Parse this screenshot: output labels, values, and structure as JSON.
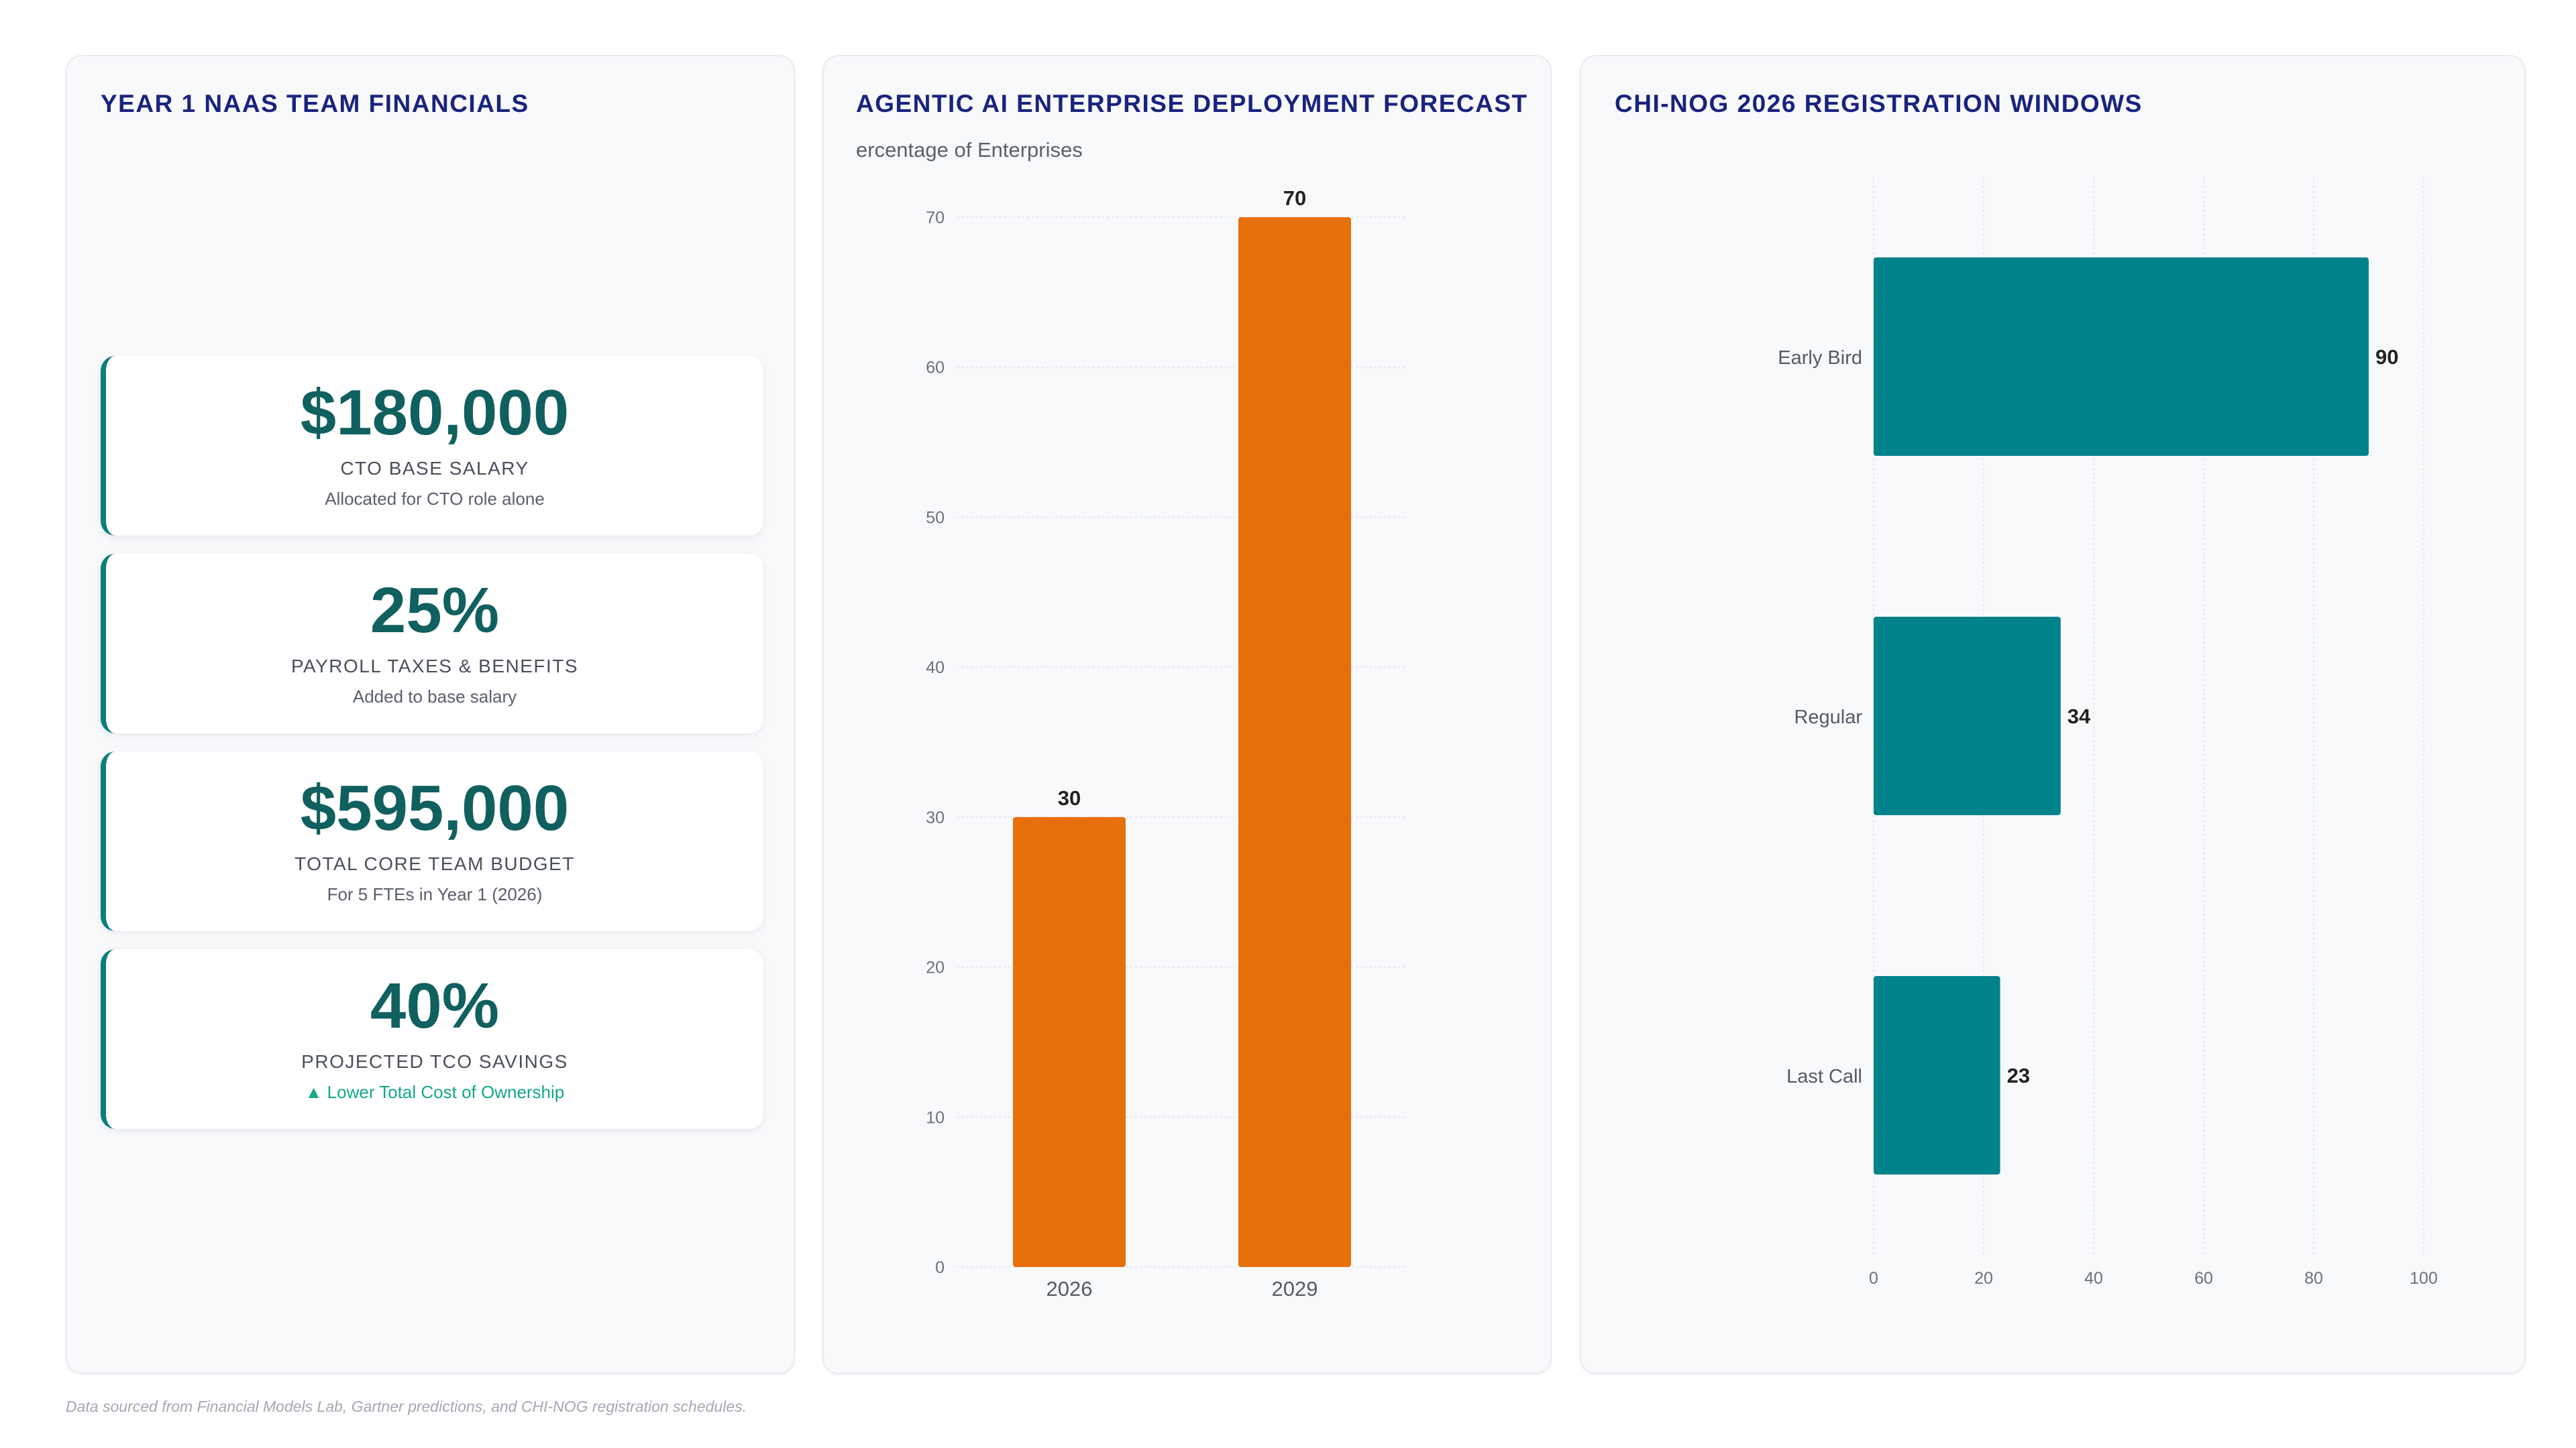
{
  "panels": {
    "financials": {
      "title": "YEAR 1 NAAS TEAM FINANCIALS",
      "cards": [
        {
          "value": "$180,000",
          "label": "CTO BASE SALARY",
          "sub": "Allocated for CTO role alone"
        },
        {
          "value": "25%",
          "label": "PAYROLL TAXES & BENEFITS",
          "sub": "Added to base salary"
        },
        {
          "value": "$595,000",
          "label": "TOTAL CORE TEAM BUDGET",
          "sub": "For 5 FTEs in Year 1 (2026)"
        },
        {
          "value": "40%",
          "label": "PROJECTED TCO SAVINGS",
          "sub": "▲ Lower Total Cost of Ownership"
        }
      ]
    },
    "forecast": {
      "title": "AGENTIC AI ENTERPRISE DEPLOYMENT FORECAST"
    },
    "registration": {
      "title": "CHI-NOG 2026 REGISTRATION WINDOWS"
    }
  },
  "colors": {
    "accent": "#0b7e7d",
    "bar_orange": "#e8700a",
    "bar_teal": "#00838a",
    "title": "#1a237e"
  },
  "chart_data": [
    {
      "type": "bar",
      "title": "AGENTIC AI ENTERPRISE DEPLOYMENT FORECAST",
      "categories": [
        "2026",
        "2029"
      ],
      "values": [
        30,
        70
      ],
      "ylabel": "ercentage of Enterprises",
      "xlabel": "",
      "ylim": [
        0,
        70
      ],
      "yticks": [
        0,
        10,
        20,
        30,
        40,
        50,
        60,
        70
      ],
      "data_labels": true,
      "grid": true
    },
    {
      "type": "bar",
      "orientation": "horizontal",
      "title": "CHI-NOG 2026 REGISTRATION WINDOWS",
      "categories": [
        "Early Bird",
        "Regular",
        "Last Call"
      ],
      "values": [
        90,
        34,
        23
      ],
      "xlim": [
        0,
        100
      ],
      "xticks": [
        0,
        20,
        40,
        60,
        80,
        100
      ],
      "data_labels": true,
      "grid": true
    }
  ],
  "footnote": "Data sourced from Financial Models Lab, Gartner predictions, and CHI-NOG registration schedules."
}
